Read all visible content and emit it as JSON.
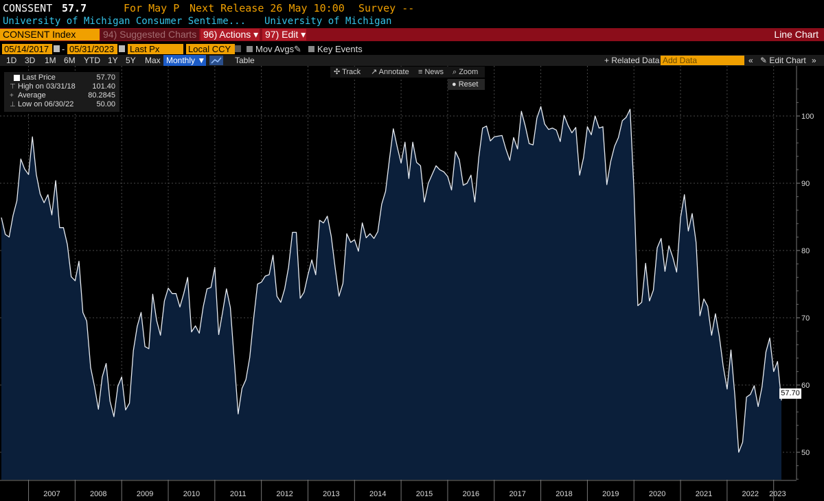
{
  "header": {
    "ticker": "CONSSENT",
    "last_value": "57.7",
    "for_label": "For May P",
    "next_release": "Next Release 26 May 10:00",
    "survey": "Survey --",
    "description": "University of Michigan Consumer Sentime...",
    "source": "University of Michigan"
  },
  "command_bar": {
    "security": "CONSENT Index",
    "suggested": "94) Suggested Charts",
    "actions": "96) Actions ▾",
    "edit": "97) Edit ▾",
    "chart_type": "Line Chart"
  },
  "settings": {
    "start_date": "05/14/2017",
    "dash": "-",
    "end_date": "05/31/2023",
    "field": "Last Px",
    "currency": "Local CCY",
    "mov_avgs": "Mov Avgs",
    "key_events": "Key Events"
  },
  "ranges": {
    "buttons": [
      "1D",
      "3D",
      "1M",
      "6M",
      "YTD",
      "1Y",
      "5Y",
      "Max"
    ],
    "periodicity": "Monthly ▼",
    "table": "Table",
    "related_data": "+ Related Data",
    "add_data_placeholder": "Add Data",
    "collapse": "«",
    "edit_chart": "✎ Edit Chart",
    "more": "»"
  },
  "chart_tools": {
    "track": "✣ Track",
    "annotate": "↗ Annotate",
    "news": "≡ News",
    "zoom": "⌕ Zoom",
    "reset": "● Reset"
  },
  "legend": {
    "last_price_label": "Last Price",
    "last_price_value": "57.70",
    "high_label": "High on 03/31/18",
    "high_value": "101.40",
    "average_label": "Average",
    "average_value": "80.2845",
    "low_label": "Low on 06/30/22",
    "low_value": "50.00"
  },
  "last_price_tag": "57.70",
  "colors": {
    "orange": "#f0a000",
    "cyan": "#35c3e8",
    "red": "#8b0d1a",
    "fill": "#0b1f3a",
    "line": "#e8ecf2"
  },
  "chart_data": {
    "type": "area",
    "title": "CONSENT Index",
    "xlabel": "",
    "ylabel": "",
    "ylim": [
      45,
      106
    ],
    "yticks": [
      50,
      60,
      70,
      80,
      90,
      100
    ],
    "year_labels": [
      "2007",
      "2008",
      "2009",
      "2010",
      "2011",
      "2012",
      "2013",
      "2014",
      "2015",
      "2016",
      "2017",
      "2018",
      "2019",
      "2020",
      "2021",
      "2022",
      "2023"
    ],
    "x_start": "2006-06",
    "x_end": "2023-05",
    "values": [
      84.9,
      82.4,
      82.0,
      85.2,
      87.4,
      93.6,
      92.1,
      91.3,
      96.9,
      91.3,
      88.4,
      87.1,
      88.3,
      85.3,
      90.4,
      83.4,
      83.4,
      80.9,
      76.1,
      75.5,
      78.4,
      70.8,
      69.5,
      62.6,
      59.8,
      56.4,
      61.2,
      63.2,
      57.6,
      55.3,
      59.8,
      61.2,
      56.3,
      57.3,
      65.1,
      68.7,
      70.8,
      65.7,
      65.4,
      73.5,
      69.6,
      67.4,
      72.5,
      74.4,
      73.6,
      73.6,
      71.6,
      73.6,
      76.0,
      67.9,
      68.8,
      67.7,
      71.6,
      74.3,
      74.5,
      77.5,
      67.5,
      70.8,
      74.3,
      71.5,
      63.7,
      55.7,
      59.5,
      60.8,
      64.1,
      69.9,
      75.0,
      75.3,
      76.2,
      76.4,
      79.3,
      73.2,
      72.3,
      74.3,
      77.5,
      82.7,
      82.7,
      72.9,
      73.8,
      76.4,
      78.6,
      76.4,
      84.5,
      84.1,
      85.1,
      82.1,
      77.5,
      73.2,
      75.1,
      82.5,
      81.2,
      81.6,
      79.9,
      84.1,
      81.9,
      82.5,
      81.8,
      82.8,
      86.9,
      88.8,
      93.6,
      98.1,
      95.4,
      93.0,
      96.1,
      90.7,
      96.1,
      93.1,
      92.6,
      87.2,
      90.0,
      91.3,
      92.6,
      92.0,
      91.7,
      91.0,
      89.0,
      94.7,
      93.5,
      89.7,
      90.0,
      91.2,
      87.2,
      93.8,
      98.2,
      98.5,
      96.3,
      96.9,
      97.0,
      97.1,
      95.1,
      93.4,
      96.8,
      95.1,
      100.7,
      98.5,
      95.9,
      95.7,
      99.7,
      101.4,
      98.8,
      98.0,
      98.2,
      97.9,
      96.2,
      100.1,
      98.6,
      97.5,
      98.3,
      91.2,
      93.8,
      98.4,
      97.2,
      100.0,
      98.2,
      98.4,
      89.8,
      93.2,
      95.5,
      96.8,
      99.3,
      99.8,
      101.0,
      89.1,
      71.8,
      72.3,
      78.1,
      72.5,
      74.1,
      80.4,
      81.8,
      76.9,
      80.7,
      79.0,
      76.8,
      84.9,
      88.3,
      82.9,
      85.5,
      81.2,
      70.3,
      72.8,
      71.7,
      67.4,
      70.6,
      67.2,
      62.8,
      59.4,
      65.2,
      58.4,
      50.0,
      51.5,
      58.2,
      58.6,
      59.9,
      56.8,
      59.7,
      64.9,
      67.0,
      62.0,
      63.5,
      57.7
    ]
  }
}
